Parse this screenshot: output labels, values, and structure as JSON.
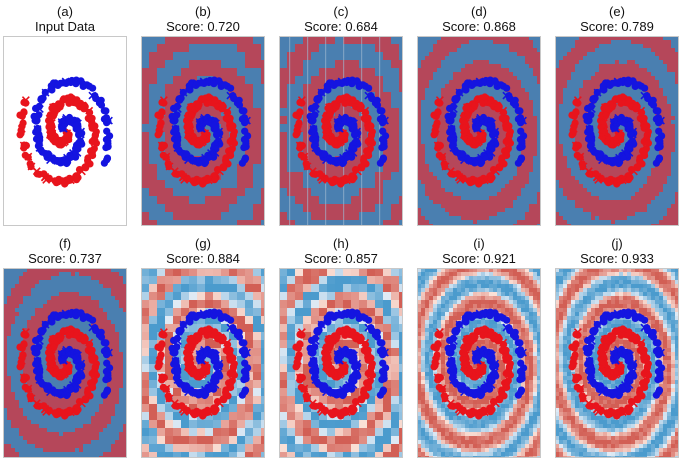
{
  "colors": {
    "class_a": "#e8141c",
    "class_b": "#1414e0",
    "frame": "#c8c8c8"
  },
  "chart_data": [
    {
      "type": "scatter",
      "panel": "(a)",
      "caption": "Input Data",
      "background": "plain"
    },
    {
      "type": "scatter",
      "panel": "(b)",
      "caption": "Score: 0.720",
      "score": 0.72,
      "background": "binary-blocky"
    },
    {
      "type": "scatter",
      "panel": "(c)",
      "caption": "Score: 0.684",
      "score": 0.684,
      "background": "binary-blocky-streaks"
    },
    {
      "type": "scatter",
      "panel": "(d)",
      "caption": "Score: 0.868",
      "score": 0.868,
      "background": "binary-smooth"
    },
    {
      "type": "scatter",
      "panel": "(e)",
      "caption": "Score: 0.789",
      "score": 0.789,
      "background": "binary-smooth"
    },
    {
      "type": "scatter",
      "panel": "(f)",
      "caption": "Score: 0.737",
      "score": 0.737,
      "background": "binary-smooth"
    },
    {
      "type": "scatter",
      "panel": "(g)",
      "caption": "Score: 0.884",
      "score": 0.884,
      "background": "gradient-blocky"
    },
    {
      "type": "scatter",
      "panel": "(h)",
      "caption": "Score: 0.857",
      "score": 0.857,
      "background": "gradient-blocky"
    },
    {
      "type": "scatter",
      "panel": "(i)",
      "caption": "Score: 0.921",
      "score": 0.921,
      "background": "gradient-smooth"
    },
    {
      "type": "scatter",
      "panel": "(j)",
      "caption": "Score: 0.933",
      "score": 0.933,
      "background": "gradient-smooth"
    }
  ]
}
